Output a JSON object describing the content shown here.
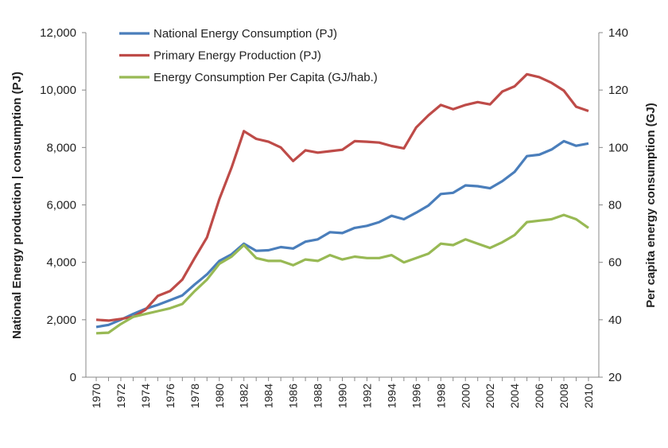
{
  "chart_data": {
    "type": "line",
    "title": "",
    "xlabel": "",
    "ylabel_left": "National Energy production  | consumption (PJ)",
    "ylabel_right": "Per capita energy consumption (GJ)",
    "ylim_left": [
      0,
      12000
    ],
    "ylim_right": [
      20,
      140
    ],
    "yticks_left": [
      "0",
      "2,000",
      "4,000",
      "6,000",
      "8,000",
      "10,000",
      "12,000"
    ],
    "yticks_right": [
      "20",
      "40",
      "60",
      "80",
      "100",
      "120",
      "140"
    ],
    "grid": false,
    "legend_placement": "top-left",
    "x": [
      1970,
      1971,
      1972,
      1973,
      1974,
      1975,
      1976,
      1977,
      1978,
      1979,
      1980,
      1981,
      1982,
      1983,
      1984,
      1985,
      1986,
      1987,
      1988,
      1989,
      1990,
      1991,
      1992,
      1993,
      1994,
      1995,
      1996,
      1997,
      1998,
      1999,
      2000,
      2001,
      2002,
      2003,
      2004,
      2005,
      2006,
      2007,
      2008,
      2009,
      2010
    ],
    "xtick_labels": [
      "1970",
      "1972",
      "1974",
      "1976",
      "1978",
      "1980",
      "1982",
      "1984",
      "1986",
      "1988",
      "1990",
      "1992",
      "1994",
      "1996",
      "1998",
      "2000",
      "2002",
      "2004",
      "2006",
      "2008",
      "2010"
    ],
    "series": [
      {
        "name": "National Energy Consumption (PJ)",
        "axis": "left",
        "color": "#4a7ebb",
        "values": [
          1750,
          1820,
          2000,
          2200,
          2380,
          2520,
          2680,
          2850,
          3230,
          3580,
          4050,
          4280,
          4650,
          4400,
          4420,
          4530,
          4480,
          4720,
          4800,
          5050,
          5020,
          5200,
          5270,
          5400,
          5620,
          5500,
          5730,
          5980,
          6380,
          6420,
          6680,
          6650,
          6580,
          6830,
          7150,
          7700,
          7750,
          7930,
          8220,
          8060,
          8140
        ]
      },
      {
        "name": "Primary Energy Production (PJ)",
        "axis": "left",
        "color": "#be4b48",
        "values": [
          2000,
          1970,
          2030,
          2100,
          2350,
          2830,
          3000,
          3400,
          4150,
          4870,
          6200,
          7300,
          8570,
          8300,
          8200,
          8000,
          7530,
          7900,
          7820,
          7870,
          7920,
          8220,
          8200,
          8170,
          8050,
          7970,
          8700,
          9120,
          9480,
          9330,
          9480,
          9580,
          9500,
          9950,
          10130,
          10550,
          10450,
          10250,
          9980,
          9420,
          9270
        ]
      },
      {
        "name": "Energy Consumption Per Capita (GJ/hab.)",
        "axis": "right",
        "color": "#98b954",
        "values": [
          35.3,
          35.5,
          38.5,
          41,
          42,
          43,
          44,
          45.5,
          50,
          54,
          59.5,
          62,
          66,
          61.5,
          60.5,
          60.5,
          59,
          61,
          60.5,
          62.5,
          61,
          62,
          61.5,
          61.5,
          62.5,
          60,
          61.5,
          63,
          66.5,
          66,
          68,
          66.5,
          65,
          67,
          69.5,
          74,
          74.5,
          75,
          76.5,
          75,
          72
        ]
      }
    ]
  }
}
